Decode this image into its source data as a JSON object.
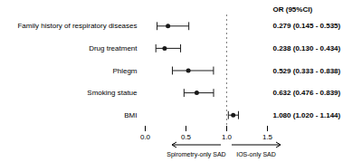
{
  "chart_data": {
    "type": "forest",
    "orientation": "horizontal",
    "categories": [
      "Family history of respiratory diseases",
      "Drug treatment",
      "Phlegm",
      "Smoking statue",
      "BMI"
    ],
    "values": [
      0.279,
      0.238,
      0.529,
      0.632,
      1.08
    ],
    "ci_low": [
      0.145,
      0.13,
      0.333,
      0.476,
      1.02
    ],
    "ci_high": [
      0.535,
      0.434,
      0.838,
      0.839,
      1.144
    ],
    "value_labels": [
      "0.279 (0.145 - 0.535)",
      "0.238 (0.130 - 0.434)",
      "0.529 (0.333 - 0.838)",
      "0.632 (0.476 - 0.839)",
      "1.080 (1.020 - 1.144)"
    ],
    "value_labels_header": "OR (95%CI)",
    "reference_line": 1.0,
    "xlim": [
      0.0,
      1.5
    ],
    "xticks": [
      {
        "value": 0.0,
        "label": "0.0"
      },
      {
        "value": 0.5,
        "label": "0.5"
      },
      {
        "value": 1.0,
        "label": "1.0"
      },
      1.5
    ],
    "grid": false,
    "color": "#1a1a1a",
    "arrows": [
      {
        "label": "Spirometry-only SAD",
        "direction": "left"
      },
      {
        "label": "IOS-only SAD",
        "direction": "right"
      }
    ]
  }
}
